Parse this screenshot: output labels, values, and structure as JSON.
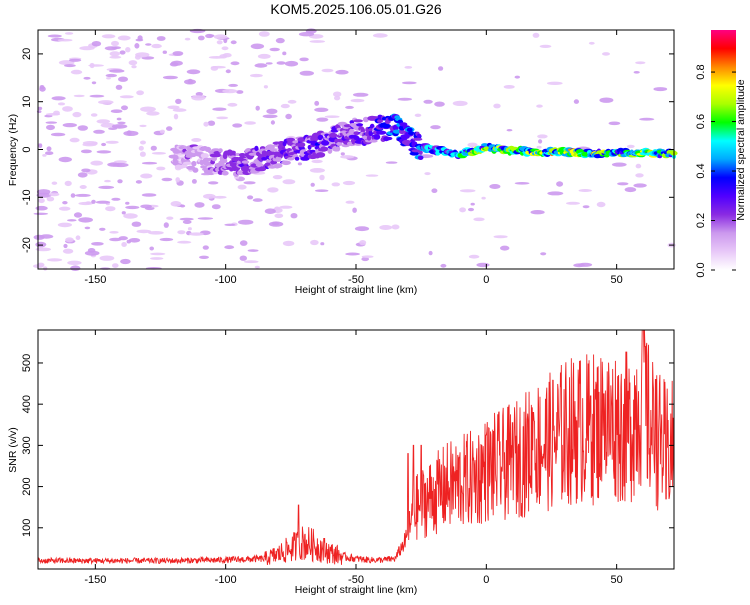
{
  "title": "KOM5.2025.106.05.01.G26",
  "chart_data": [
    {
      "type": "heatmap",
      "name": "spectrogram",
      "xlabel": "Height of straight line (km)",
      "ylabel": "Frequency (Hz)",
      "xlim": [
        -172,
        72
      ],
      "ylim": [
        -25,
        25
      ],
      "xticks": [
        -150,
        -100,
        -50,
        0,
        50
      ],
      "yticks": [
        -20,
        -10,
        0,
        10,
        20
      ],
      "colorbar": {
        "label": "Normalized spectral amplitude",
        "range": [
          0,
          0.97
        ],
        "ticks": [
          "0.0",
          "0.2",
          "0.4",
          "0.6",
          "0.8"
        ],
        "tick_values": [
          0,
          0.2,
          0.4,
          0.6,
          0.8
        ],
        "colormap": [
          "#ffffff",
          "#e8c8f8",
          "#cc99ee",
          "#8a2be2",
          "#5000ff",
          "#0000ff",
          "#00aaff",
          "#00ffff",
          "#00ff00",
          "#aaff00",
          "#ffff00",
          "#ff8800",
          "#ff0000",
          "#ff0080"
        ]
      },
      "ridge": {
        "description_points_x": [
          -170,
          -150,
          -130,
          -110,
          -95,
          -80,
          -65,
          -55,
          -45,
          -35,
          -28,
          -20,
          -10,
          0,
          10,
          20,
          30,
          40,
          50,
          60,
          70
        ],
        "frequency_hz": [
          0,
          0,
          0,
          -2,
          -3,
          -1,
          1,
          3,
          4,
          5,
          1,
          0,
          -1,
          0.5,
          -0.3,
          -0.5,
          -0.5,
          -0.8,
          -0.8,
          -0.8,
          -0.8
        ],
        "amplitude": [
          0.1,
          0.1,
          0.1,
          0.15,
          0.2,
          0.2,
          0.25,
          0.2,
          0.25,
          0.35,
          0.3,
          0.4,
          0.4,
          0.55,
          0.5,
          0.55,
          0.6,
          0.55,
          0.5,
          0.55,
          0.5
        ]
      }
    },
    {
      "type": "line",
      "name": "snr",
      "xlabel": "Height of straight line (km)",
      "ylabel": "SNR (v/v)",
      "xlim": [
        -172,
        72
      ],
      "ylim": [
        0,
        580
      ],
      "xticks": [
        -150,
        -100,
        -50,
        0,
        50
      ],
      "yticks": [
        100,
        200,
        300,
        400,
        500
      ],
      "color": "#ee2222",
      "envelope_x": [
        -172,
        -150,
        -120,
        -100,
        -85,
        -80,
        -75,
        -70,
        -65,
        -60,
        -55,
        -50,
        -45,
        -40,
        -35,
        -30,
        -28,
        -25,
        -20,
        -15,
        -10,
        -5,
        0,
        5,
        10,
        15,
        20,
        25,
        30,
        35,
        40,
        45,
        50,
        55,
        58,
        60,
        62,
        65,
        68,
        70,
        72
      ],
      "envelope_y": [
        20,
        20,
        20,
        22,
        25,
        35,
        50,
        65,
        55,
        40,
        30,
        25,
        22,
        22,
        25,
        80,
        140,
        160,
        180,
        200,
        210,
        220,
        240,
        250,
        260,
        280,
        300,
        310,
        330,
        340,
        340,
        350,
        350,
        340,
        400,
        430,
        360,
        320,
        300,
        290,
        300
      ],
      "spikes_x": [
        -72,
        -30,
        -28,
        -25,
        0,
        10,
        18,
        40,
        45,
        50,
        60,
        61,
        65,
        69
      ],
      "spikes_y": [
        155,
        280,
        300,
        300,
        325,
        355,
        380,
        420,
        425,
        410,
        580,
        540,
        460,
        170
      ]
    }
  ]
}
